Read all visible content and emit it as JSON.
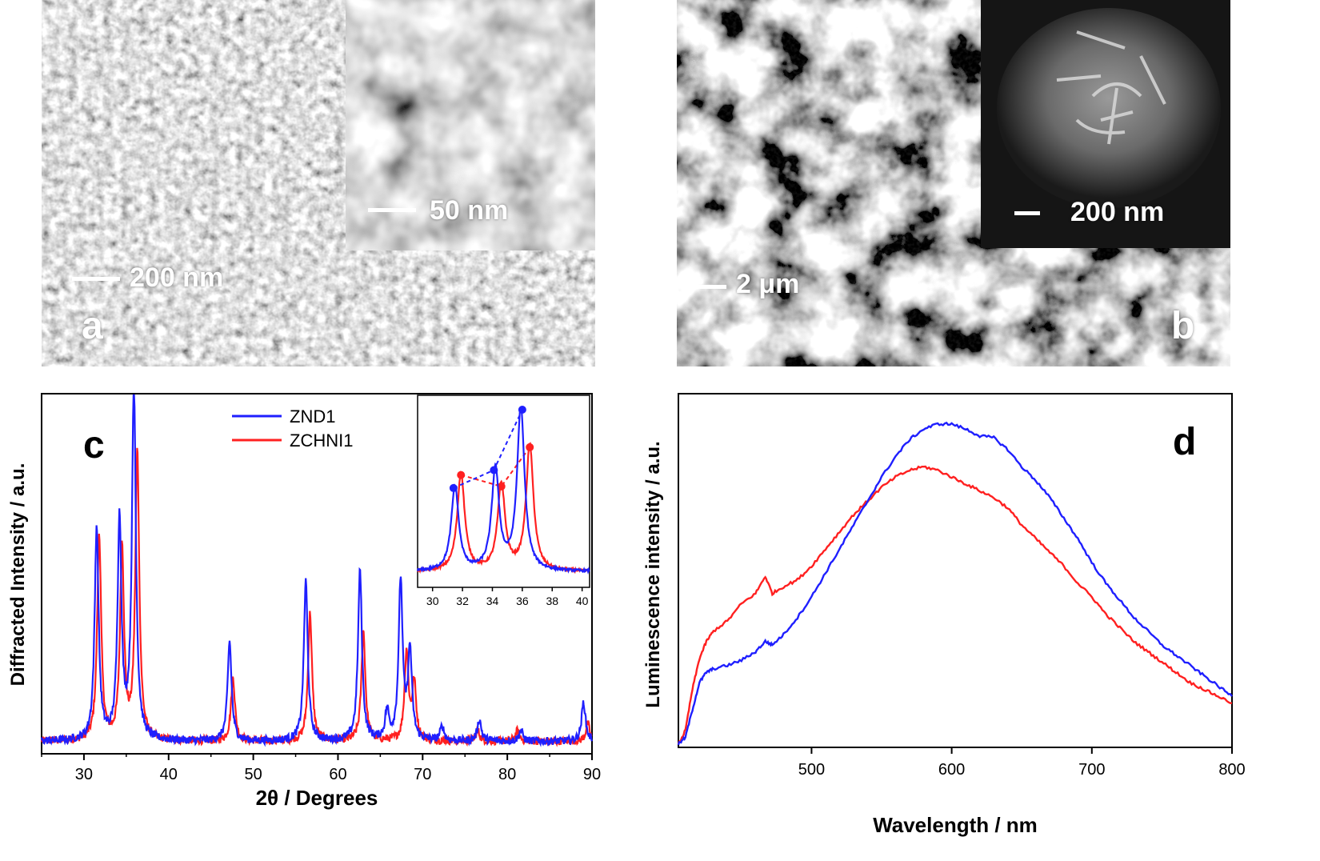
{
  "panel_a": {
    "letter": "a",
    "scale_main": "200 nm",
    "scale_inset": "50 nm"
  },
  "panel_b": {
    "letter": "b",
    "scale_main": "2 μm",
    "scale_inset": "200 nm"
  },
  "panel_c": {
    "letter": "c",
    "legend": [
      {
        "name": "ZND1",
        "color": "#1f1fff"
      },
      {
        "name": "ZCHNI1",
        "color": "#ff2020"
      }
    ]
  },
  "panel_d": {
    "letter": "d"
  },
  "chart_data": [
    {
      "type": "line",
      "panel": "c",
      "xlabel": "2θ / Degrees",
      "ylabel": "Diffracted Intensity / a.u.",
      "xlim": [
        25,
        90
      ],
      "xticks": [
        30,
        40,
        50,
        60,
        70,
        80,
        90
      ],
      "y_ticks_shown": false,
      "peaks_x": [
        31.6,
        34.3,
        36.1,
        47.4,
        56.4,
        62.7,
        67.7,
        68.8,
        89.4
      ],
      "series": [
        {
          "name": "ZND1",
          "color": "#1f1fff",
          "peaks": [
            [
              31.5,
              0.6
            ],
            [
              34.2,
              0.62
            ],
            [
              35.9,
              1.0
            ],
            [
              47.2,
              0.28
            ],
            [
              56.2,
              0.45
            ],
            [
              62.6,
              0.48
            ],
            [
              65.8,
              0.08
            ],
            [
              67.4,
              0.45
            ],
            [
              68.5,
              0.25
            ],
            [
              72.3,
              0.04
            ],
            [
              76.7,
              0.06
            ],
            [
              81.6,
              0.03
            ],
            [
              89.0,
              0.11
            ]
          ]
        },
        {
          "name": "ZCHNI1",
          "color": "#ff2020",
          "peaks": [
            [
              31.8,
              0.58
            ],
            [
              34.5,
              0.54
            ],
            [
              36.3,
              0.81
            ],
            [
              47.6,
              0.18
            ],
            [
              56.7,
              0.36
            ],
            [
              63.0,
              0.31
            ],
            [
              68.1,
              0.25
            ],
            [
              69.0,
              0.16
            ],
            [
              76.5,
              0.03
            ],
            [
              81.2,
              0.03
            ],
            [
              89.5,
              0.05
            ]
          ]
        }
      ],
      "inset": {
        "xlim": [
          29,
          40.5
        ],
        "xticks": [
          30,
          32,
          34,
          36,
          38,
          40
        ],
        "series": [
          {
            "name": "ZND1",
            "color": "#1f1fff",
            "peaks": [
              [
                31.5,
                0.52
              ],
              [
                34.2,
                0.62
              ],
              [
                35.9,
                1.0
              ]
            ],
            "markers": [
              [
                31.4,
                0.52
              ],
              [
                34.1,
                0.63
              ],
              [
                36.0,
                1.0
              ]
            ]
          },
          {
            "name": "ZCHNI1",
            "color": "#ff2020",
            "peaks": [
              [
                31.9,
                0.6
              ],
              [
                34.6,
                0.53
              ],
              [
                36.5,
                0.77
              ]
            ],
            "markers": [
              [
                31.9,
                0.6
              ],
              [
                34.6,
                0.53
              ],
              [
                36.5,
                0.77
              ]
            ]
          }
        ]
      }
    },
    {
      "type": "line",
      "panel": "d",
      "xlabel": "Wavelength / nm",
      "ylabel": "Luminescence intensity / a.u.",
      "xlim": [
        405,
        800
      ],
      "xticks": [
        500,
        600,
        700,
        800
      ],
      "y_ticks_shown": false,
      "series": [
        {
          "name": "blue",
          "color": "#1f1fff",
          "x": [
            405,
            410,
            415,
            420,
            425,
            430,
            440,
            450,
            460,
            467,
            472,
            480,
            490,
            500,
            510,
            520,
            530,
            540,
            550,
            560,
            570,
            580,
            590,
            600,
            610,
            620,
            630,
            640,
            650,
            660,
            670,
            680,
            690,
            700,
            710,
            720,
            730,
            740,
            750,
            760,
            770,
            780,
            790,
            800
          ],
          "y": [
            0.0,
            0.02,
            0.1,
            0.18,
            0.21,
            0.22,
            0.23,
            0.245,
            0.27,
            0.3,
            0.29,
            0.32,
            0.37,
            0.43,
            0.5,
            0.57,
            0.64,
            0.71,
            0.78,
            0.84,
            0.89,
            0.92,
            0.935,
            0.935,
            0.92,
            0.9,
            0.895,
            0.86,
            0.81,
            0.77,
            0.72,
            0.66,
            0.6,
            0.53,
            0.47,
            0.42,
            0.37,
            0.33,
            0.29,
            0.26,
            0.23,
            0.2,
            0.17,
            0.14
          ]
        },
        {
          "name": "red",
          "color": "#ff2020",
          "x": [
            405,
            410,
            415,
            420,
            425,
            430,
            440,
            450,
            460,
            467,
            472,
            480,
            490,
            500,
            510,
            520,
            530,
            540,
            550,
            560,
            570,
            580,
            590,
            600,
            610,
            620,
            630,
            640,
            650,
            660,
            670,
            680,
            690,
            700,
            710,
            720,
            730,
            740,
            750,
            760,
            770,
            780,
            790,
            800
          ],
          "y": [
            0.0,
            0.04,
            0.16,
            0.25,
            0.3,
            0.33,
            0.36,
            0.41,
            0.44,
            0.49,
            0.44,
            0.46,
            0.48,
            0.52,
            0.57,
            0.62,
            0.67,
            0.71,
            0.75,
            0.78,
            0.8,
            0.81,
            0.8,
            0.78,
            0.76,
            0.74,
            0.72,
            0.69,
            0.64,
            0.6,
            0.56,
            0.52,
            0.47,
            0.43,
            0.38,
            0.34,
            0.3,
            0.27,
            0.24,
            0.21,
            0.18,
            0.16,
            0.14,
            0.12
          ]
        }
      ]
    }
  ]
}
